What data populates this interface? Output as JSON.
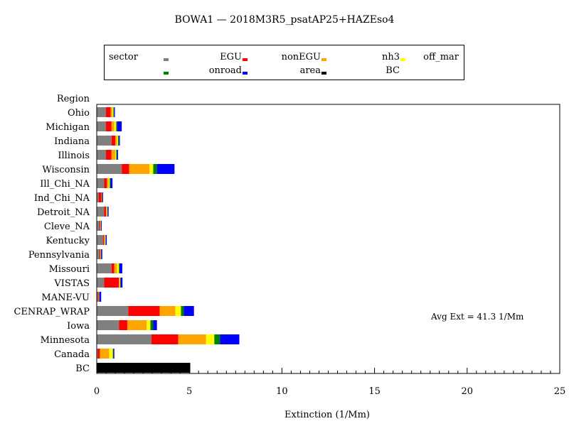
{
  "chart_data": {
    "type": "bar",
    "orientation": "horizontal",
    "stacked": true,
    "title": "BOWA1 — 2018M3R5_psatAP25+HAZEso4",
    "xlabel": "Extinction (1/Mm)",
    "ylabel": "Region",
    "xlim": [
      0,
      25
    ],
    "xticks": [
      0,
      5,
      10,
      15,
      20,
      25
    ],
    "grid": false,
    "annotation": "Avg Ext = 41.3 1/Mm",
    "legend": {
      "title": "sector",
      "placement": "top",
      "items": [
        {
          "name": "EGU",
          "color": "#808080"
        },
        {
          "name": "nonEGU",
          "color": "#ff0000"
        },
        {
          "name": "nh3",
          "color": "#ffa500"
        },
        {
          "name": "off_mar",
          "color": "#ffff00"
        },
        {
          "name": "onroad",
          "color": "#008000"
        },
        {
          "name": "area",
          "color": "#0000ff"
        },
        {
          "name": "BC",
          "color": "#000000"
        }
      ]
    },
    "categories": [
      "Ohio",
      "Michigan",
      "Indiana",
      "Illinois",
      "Wisconsin",
      "Ill_Chi_NA",
      "Ind_Chi_NA",
      "Detroit_NA",
      "Cleve_NA",
      "Kentucky",
      "Pennsylvania",
      "Missouri",
      "VISTAS",
      "MANE-VU",
      "CENRAP_WRAP",
      "Iowa",
      "Minnesota",
      "Canada",
      "BC"
    ],
    "series": [
      {
        "name": "EGU",
        "color": "#808080",
        "values": [
          0.5,
          0.5,
          0.8,
          0.5,
          1.35,
          0.4,
          0.1,
          0.4,
          0.15,
          0.35,
          0.15,
          0.8,
          0.4,
          0.05,
          1.7,
          1.2,
          2.95,
          0.05,
          0
        ]
      },
      {
        "name": "nonEGU",
        "color": "#ff0000",
        "values": [
          0.25,
          0.3,
          0.2,
          0.3,
          0.4,
          0.15,
          0.15,
          0.1,
          0.05,
          0.05,
          0.05,
          0.15,
          0.8,
          0.05,
          1.7,
          0.45,
          1.45,
          0.12,
          0
        ]
      },
      {
        "name": "nh3",
        "color": "#ffa500",
        "values": [
          0.1,
          0.15,
          0.1,
          0.2,
          1.1,
          0.1,
          0.02,
          0.05,
          0.02,
          0.05,
          0.02,
          0.15,
          0.05,
          0.02,
          0.85,
          1.05,
          1.5,
          0.5,
          0
        ]
      },
      {
        "name": "off_mar",
        "color": "#ffff00",
        "values": [
          0.05,
          0.1,
          0.05,
          0.05,
          0.2,
          0.05,
          0.01,
          0.02,
          0.01,
          0.02,
          0.01,
          0.1,
          0.02,
          0.01,
          0.3,
          0.2,
          0.45,
          0.2,
          0
        ]
      },
      {
        "name": "onroad",
        "color": "#008000",
        "values": [
          0.03,
          0.05,
          0.05,
          0.05,
          0.2,
          0.05,
          0.01,
          0.02,
          0.01,
          0.02,
          0.02,
          0.03,
          0.02,
          0.01,
          0.15,
          0.15,
          0.3,
          0.03,
          0
        ]
      },
      {
        "name": "area",
        "color": "#0000ff",
        "values": [
          0.05,
          0.25,
          0.05,
          0.05,
          0.95,
          0.1,
          0.05,
          0.05,
          0.03,
          0.05,
          0.05,
          0.15,
          0.1,
          0.1,
          0.55,
          0.2,
          1.05,
          0.05,
          0
        ]
      },
      {
        "name": "BC",
        "color": "#000000",
        "values": [
          0,
          0,
          0,
          0,
          0,
          0,
          0,
          0,
          0,
          0,
          0,
          0,
          0,
          0,
          0,
          0,
          0,
          0,
          5.05
        ]
      }
    ]
  }
}
